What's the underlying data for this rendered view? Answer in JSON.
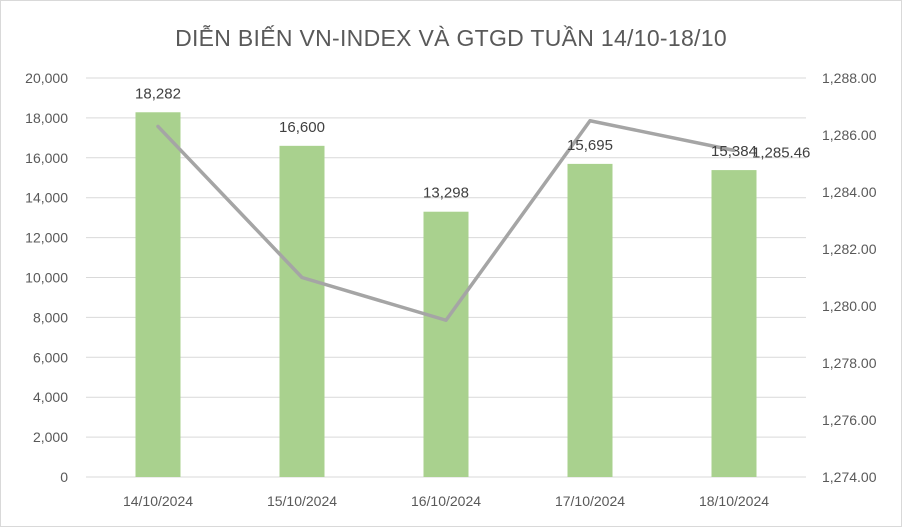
{
  "chart_data": {
    "type": "bar",
    "title": "DIỄN BIẾN VN-INDEX VÀ GTGD TUẦN 14/10-18/10",
    "categories": [
      "14/10/2024",
      "15/10/2024",
      "16/10/2024",
      "17/10/2024",
      "18/10/2024"
    ],
    "series": [
      {
        "type": "bar",
        "axis": "left",
        "color": "#a9d18e",
        "values": [
          18282,
          16600,
          13298,
          15695,
          15384
        ],
        "data_labels": [
          "18,282",
          "16,600",
          "13,298",
          "15,695",
          "15,384"
        ]
      },
      {
        "type": "line",
        "axis": "right",
        "color": "#a5a5a5",
        "values": [
          1286.3,
          1281.0,
          1279.5,
          1286.5,
          1285.46
        ],
        "data_labels": [
          "",
          "",
          "",
          "",
          "1,285.46"
        ]
      }
    ],
    "y_left": {
      "min": 0,
      "max": 20000,
      "step": 2000,
      "tick_labels": [
        "0",
        "2,000",
        "4,000",
        "6,000",
        "8,000",
        "10,000",
        "12,000",
        "14,000",
        "16,000",
        "18,000",
        "20,000"
      ]
    },
    "y_right": {
      "min": 1274,
      "max": 1288,
      "step": 2,
      "tick_labels": [
        "1,274.00",
        "1,276.00",
        "1,278.00",
        "1,280.00",
        "1,282.00",
        "1,284.00",
        "1,286.00",
        "1,288.00"
      ]
    },
    "grid": true,
    "legend": "none"
  }
}
